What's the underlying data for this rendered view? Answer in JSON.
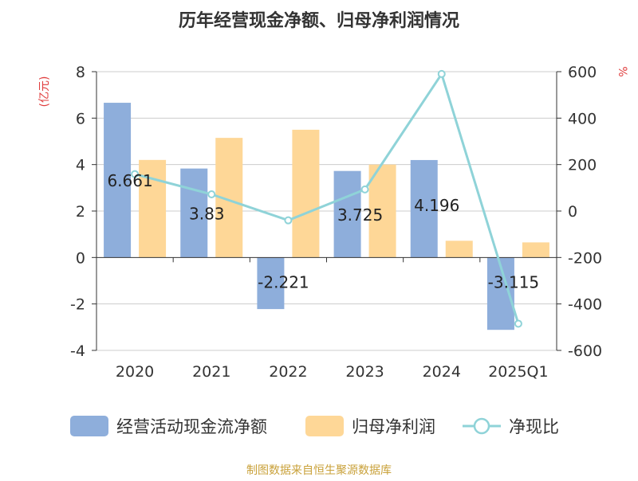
{
  "chart_data": {
    "type": "bar",
    "title": "历年经营现金净额、归母净利润情况",
    "categories": [
      "2020",
      "2021",
      "2022",
      "2023",
      "2024",
      "2025Q1"
    ],
    "y_left": {
      "unit": "(亿元)",
      "min": -4,
      "max": 8,
      "ticks": [
        -4,
        -2,
        0,
        2,
        4,
        6,
        8
      ]
    },
    "y_right": {
      "unit": "%",
      "min": -600,
      "max": 600,
      "ticks": [
        -600,
        -400,
        -200,
        0,
        200,
        400,
        600
      ]
    },
    "series": [
      {
        "name": "经营活动现金流净额",
        "type": "bar",
        "axis": "left",
        "color": "#8eaedb",
        "values": [
          6.661,
          3.83,
          -2.221,
          3.725,
          4.196,
          -3.115
        ],
        "labels": [
          "6.661",
          "3.83",
          "-2.221",
          "3.725",
          "4.196",
          "-3.115"
        ]
      },
      {
        "name": "归母净利润",
        "type": "bar",
        "axis": "left",
        "color": "#fed797",
        "values": [
          4.2,
          5.15,
          5.5,
          4.0,
          0.72,
          0.65
        ]
      },
      {
        "name": "净现比",
        "type": "line",
        "axis": "right",
        "color": "#8fd3d8",
        "values": [
          159,
          72,
          -40,
          93,
          590,
          -485
        ]
      }
    ],
    "legend_position": "bottom",
    "grid": true
  },
  "source": "制图数据来自恒生聚源数据库",
  "colors": {
    "title": "#333333",
    "unit": "#e03c3c",
    "source": "#c9a13a",
    "axis": "#333333",
    "grid": "#cccccc"
  }
}
